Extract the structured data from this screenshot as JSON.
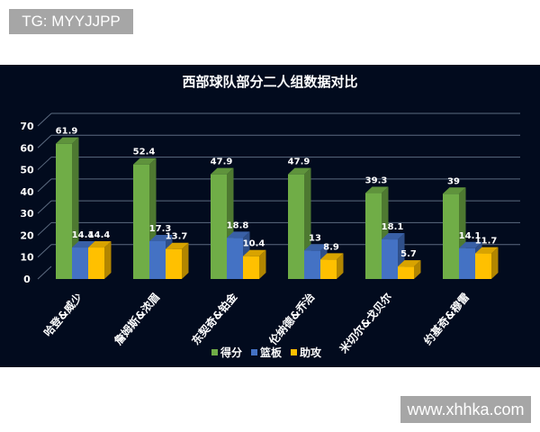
{
  "watermarks": {
    "top_left": "TG: MYYJJPP",
    "bottom_right": "www.xhhka.com"
  },
  "chart_data": {
    "type": "bar",
    "title": "西部球队部分二人组数据对比",
    "categories": [
      "哈登&威少",
      "詹姆斯&浓眉",
      "东契奇&铂金",
      "伦纳德&乔治",
      "米切尔&戈贝尔",
      "约基奇&穆雷"
    ],
    "series": [
      {
        "name": "得分",
        "color": "#70ad47",
        "values": [
          61.9,
          52.4,
          47.9,
          47.9,
          39.3,
          39
        ]
      },
      {
        "name": "篮板",
        "color": "#4472c4",
        "values": [
          14.4,
          17.3,
          18.8,
          13,
          18.1,
          14.1
        ]
      },
      {
        "name": "助攻",
        "color": "#ffc000",
        "values": [
          14.4,
          13.7,
          10.4,
          8.9,
          5.7,
          11.7
        ]
      }
    ],
    "yticks": [
      0,
      10,
      20,
      30,
      40,
      50,
      60,
      70
    ],
    "ylim": [
      0,
      70
    ],
    "grid": true,
    "legend": "bottom",
    "style": "3d-clustered-column"
  }
}
